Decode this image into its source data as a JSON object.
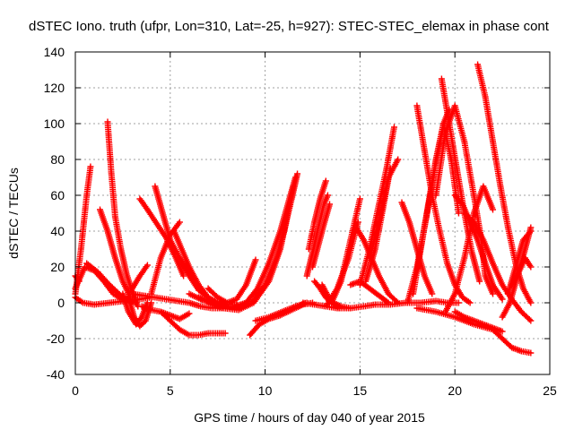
{
  "chart_data": {
    "type": "scatter",
    "title": "dSTEC Iono. truth (ufpr, Lon=310, Lat=-25, h=927): STEC-STEC_elemax in phase cont",
    "xlabel": "GPS time / hours of day 040 of year 2015",
    "ylabel": "dSTEC  / TECUs",
    "xlim": [
      0,
      25
    ],
    "ylim": [
      -40,
      140
    ],
    "xticks": [
      "0",
      "5",
      "10",
      "15",
      "20",
      "25"
    ],
    "yticks": [
      "-40",
      "-20",
      "0",
      "20",
      "40",
      "60",
      "80",
      "100",
      "120",
      "140"
    ],
    "grid": true,
    "marker": "+",
    "color": "#ff0000",
    "series": [
      {
        "x": [
          0.0,
          0.3,
          0.6,
          0.8
        ],
        "y": [
          5,
          30,
          60,
          76
        ]
      },
      {
        "x": [
          0.0,
          0.4,
          1.0,
          1.8,
          2.6,
          3.4,
          4.0
        ],
        "y": [
          3,
          0,
          -1,
          0,
          1,
          2,
          3
        ]
      },
      {
        "x": [
          0.0,
          0.5,
          1.0,
          1.5,
          2.0,
          2.5,
          3.0
        ],
        "y": [
          8,
          20,
          18,
          12,
          5,
          2,
          1
        ]
      },
      {
        "x": [
          0.0,
          0.2
        ],
        "y": [
          15,
          12
        ]
      },
      {
        "x": [
          0.6,
          1.2,
          1.8,
          2.4,
          2.9,
          3.2
        ],
        "y": [
          22,
          17,
          10,
          4,
          1,
          0
        ]
      },
      {
        "x": [
          1.3,
          1.7,
          2.1,
          2.5,
          2.9
        ],
        "y": [
          52,
          40,
          25,
          12,
          3
        ]
      },
      {
        "x": [
          1.7,
          1.9,
          2.1,
          2.4,
          2.7,
          3.0,
          3.3
        ],
        "y": [
          101,
          72,
          48,
          30,
          16,
          6,
          -2
        ]
      },
      {
        "x": [
          2.5,
          2.8,
          3.2,
          3.5,
          3.8
        ],
        "y": [
          5,
          -5,
          -12,
          -8,
          0
        ]
      },
      {
        "x": [
          2.8,
          3.1,
          3.4,
          3.7,
          4.0
        ],
        "y": [
          3,
          -8,
          -13,
          -10,
          0
        ]
      },
      {
        "x": [
          3.0,
          3.4,
          3.8
        ],
        "y": [
          8,
          15,
          21
        ]
      },
      {
        "x": [
          3.4,
          3.8,
          4.3,
          4.8,
          5.3,
          5.7
        ],
        "y": [
          58,
          52,
          44,
          36,
          25,
          15
        ]
      },
      {
        "x": [
          4.2,
          4.6,
          5.0,
          5.5,
          6.0,
          6.5,
          7.0
        ],
        "y": [
          65,
          50,
          35,
          25,
          15,
          7,
          3
        ]
      },
      {
        "x": [
          4.0,
          4.5,
          5.0,
          5.5
        ],
        "y": [
          5,
          25,
          38,
          45
        ]
      },
      {
        "x": [
          3.5,
          4.0,
          4.5,
          5.0,
          5.5,
          6.0
        ],
        "y": [
          -2,
          -4,
          -5,
          -7,
          -9,
          -6
        ]
      },
      {
        "x": [
          5.2,
          5.6,
          6.0,
          6.5,
          7.0,
          7.5,
          8.0
        ],
        "y": [
          40,
          30,
          20,
          10,
          3,
          0,
          -2
        ]
      },
      {
        "x": [
          5.5,
          6.0,
          6.5,
          7.0,
          7.5,
          8.0,
          8.5
        ],
        "y": [
          25,
          16,
          8,
          3,
          0,
          -1,
          -1
        ]
      },
      {
        "x": [
          3.0,
          3.6,
          4.2,
          4.8,
          5.4,
          6.0,
          6.6,
          7.2,
          7.8,
          8.4,
          9.0
        ],
        "y": [
          5,
          4,
          3,
          2,
          1,
          0,
          -2,
          -3,
          -3,
          -2,
          0
        ]
      },
      {
        "x": [
          4.5,
          5.0,
          5.5,
          6.0,
          6.5,
          7.0,
          7.5,
          7.9
        ],
        "y": [
          -5,
          -10,
          -15,
          -18,
          -18,
          -17,
          -17,
          -17
        ]
      },
      {
        "x": [
          7.0,
          7.5,
          8.0,
          8.5,
          9.0,
          9.5
        ],
        "y": [
          8,
          3,
          0,
          2,
          10,
          24
        ]
      },
      {
        "x": [
          6.0,
          6.6,
          7.2,
          7.8,
          8.4,
          9.0,
          9.6,
          10.2,
          10.8,
          11.2,
          11.6
        ],
        "y": [
          5,
          2,
          0,
          -2,
          -3,
          0,
          8,
          22,
          40,
          55,
          70
        ]
      },
      {
        "x": [
          6.5,
          7.2,
          7.9,
          8.6,
          9.3,
          10.0,
          10.6,
          11.0,
          11.4,
          11.7
        ],
        "y": [
          3,
          0,
          -2,
          -3,
          0,
          10,
          25,
          40,
          58,
          72
        ]
      },
      {
        "x": [
          7.0,
          7.8,
          8.6,
          9.4,
          10.2,
          10.8,
          11.3,
          11.5
        ],
        "y": [
          0,
          -3,
          -4,
          0,
          12,
          30,
          55,
          65
        ]
      },
      {
        "x": [
          9.2,
          9.7,
          10.2,
          10.8,
          11.4,
          12.0,
          12.5
        ],
        "y": [
          -18,
          -12,
          -9,
          -7,
          -4,
          -1,
          0
        ]
      },
      {
        "x": [
          9.5,
          10.2,
          10.9,
          11.6,
          12.2
        ],
        "y": [
          -10,
          -8,
          -5,
          -2,
          0
        ]
      },
      {
        "x": [
          12.0,
          12.6,
          13.2,
          13.8,
          14.5,
          15.2,
          15.8,
          16.6,
          17.4,
          18.2,
          19.0,
          19.6,
          20.2
        ],
        "y": [
          0,
          -1,
          -2,
          -3,
          -3,
          -2,
          -1,
          -1,
          0,
          0,
          1,
          0,
          0
        ]
      },
      {
        "x": [
          12.6,
          12.9,
          13.2,
          13.5,
          13.9
        ],
        "y": [
          12,
          8,
          3,
          0,
          -3
        ]
      },
      {
        "x": [
          13.0,
          13.3,
          13.6,
          14.0,
          14.5
        ],
        "y": [
          10,
          4,
          0,
          -2,
          -3
        ]
      },
      {
        "x": [
          12.3,
          12.6,
          12.9,
          13.2
        ],
        "y": [
          30,
          45,
          58,
          68
        ]
      },
      {
        "x": [
          12.2,
          12.5,
          12.8,
          13.1,
          13.3
        ],
        "y": [
          15,
          28,
          42,
          55,
          60
        ]
      },
      {
        "x": [
          12.5,
          12.8,
          13.1,
          13.4
        ],
        "y": [
          20,
          32,
          44,
          55
        ]
      },
      {
        "x": [
          13.5,
          14.0,
          14.5,
          15.0
        ],
        "y": [
          0,
          12,
          35,
          58
        ]
      },
      {
        "x": [
          13.2,
          13.8,
          14.4,
          14.9
        ],
        "y": [
          -2,
          8,
          25,
          45
        ]
      },
      {
        "x": [
          14.8,
          15.2,
          15.6,
          16.0,
          16.5,
          17.0
        ],
        "y": [
          42,
          35,
          25,
          15,
          5,
          0
        ]
      },
      {
        "x": [
          14.5,
          15.0,
          15.5,
          16.0,
          16.5
        ],
        "y": [
          10,
          12,
          8,
          4,
          0
        ]
      },
      {
        "x": [
          15.0,
          15.5,
          16.0,
          16.4,
          16.8
        ],
        "y": [
          10,
          30,
          55,
          75,
          98
        ]
      },
      {
        "x": [
          15.3,
          15.8,
          16.2,
          16.6
        ],
        "y": [
          12,
          30,
          52,
          75
        ]
      },
      {
        "x": [
          15.5,
          16.0,
          16.5,
          17.0
        ],
        "y": [
          25,
          45,
          70,
          80
        ]
      },
      {
        "x": [
          17.2,
          17.6,
          18.0,
          18.4,
          18.8
        ],
        "y": [
          56,
          45,
          30,
          15,
          5
        ]
      },
      {
        "x": [
          17.5,
          18.0,
          18.5,
          19.0,
          19.4,
          19.8,
          20.2
        ],
        "y": [
          0,
          20,
          48,
          78,
          100,
          80,
          50
        ]
      },
      {
        "x": [
          18.0,
          18.4,
          18.8,
          19.2,
          19.6,
          20.0,
          20.4,
          20.8
        ],
        "y": [
          110,
          85,
          60,
          40,
          22,
          10,
          3,
          0
        ]
      },
      {
        "x": [
          17.8,
          18.2,
          18.6,
          19.0,
          19.4,
          19.7
        ],
        "y": [
          5,
          30,
          55,
          80,
          100,
          108
        ]
      },
      {
        "x": [
          19.3,
          19.7,
          20.1,
          20.5,
          20.9,
          21.3
        ],
        "y": [
          125,
          100,
          75,
          50,
          28,
          12
        ]
      },
      {
        "x": [
          19.0,
          19.5,
          20.0,
          20.5,
          21.0,
          21.4,
          21.6,
          22.0
        ],
        "y": [
          60,
          95,
          110,
          90,
          60,
          35,
          15,
          5
        ]
      },
      {
        "x": [
          20.0,
          20.4,
          20.8,
          21.2,
          21.6,
          22.0,
          22.5
        ],
        "y": [
          60,
          55,
          45,
          35,
          22,
          10,
          2
        ]
      },
      {
        "x": [
          21.2,
          21.6,
          22.0,
          22.4,
          22.8,
          23.2,
          23.6,
          24.0
        ],
        "y": [
          133,
          115,
          90,
          65,
          42,
          22,
          8,
          0
        ]
      },
      {
        "x": [
          19.5,
          20.0,
          20.5,
          21.0,
          21.5,
          22.0
        ],
        "y": [
          -5,
          5,
          25,
          50,
          65,
          52
        ]
      },
      {
        "x": [
          20.5,
          21.0,
          21.5,
          22.0,
          22.5,
          23.0,
          23.5,
          24.0
        ],
        "y": [
          50,
          45,
          35,
          22,
          10,
          2,
          -5,
          -10
        ]
      },
      {
        "x": [
          18.0,
          19.0,
          20.0,
          21.0,
          22.0,
          22.5,
          23.0,
          23.5,
          24.0
        ],
        "y": [
          -3,
          -5,
          -8,
          -12,
          -15,
          -20,
          -25,
          -27,
          -28
        ]
      },
      {
        "x": [
          20.0,
          20.5,
          21.0,
          21.5,
          22.0,
          22.5
        ],
        "y": [
          -5,
          -8,
          -10,
          -12,
          -14,
          -16
        ]
      },
      {
        "x": [
          22.5,
          22.9,
          23.3,
          23.7,
          24.0
        ],
        "y": [
          -8,
          0,
          15,
          30,
          42
        ]
      },
      {
        "x": [
          22.8,
          23.2,
          23.6,
          24.0
        ],
        "y": [
          5,
          20,
          35,
          40
        ]
      },
      {
        "x": [
          23.0,
          23.4,
          23.7,
          24.0
        ],
        "y": [
          10,
          18,
          25,
          20
        ]
      }
    ]
  }
}
